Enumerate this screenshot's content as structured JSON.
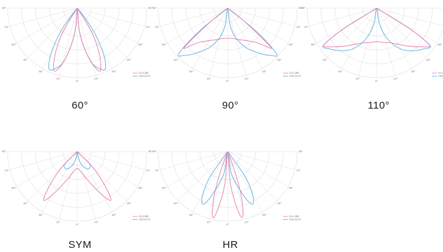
{
  "colors": {
    "c0": "#e67aa8",
    "c90": "#5aaee0",
    "grid": "#dedede",
    "tick": "#777777"
  },
  "tick_labels": [
    "90°",
    "75°",
    "60°",
    "45°",
    "30°",
    "15°",
    "0°",
    "15°",
    "30°",
    "45°",
    "60°",
    "75°",
    "90°"
  ],
  "legend": [
    "C0-C180",
    "C90-C270"
  ],
  "panels": [
    {
      "caption": "60°",
      "c0": {
        "pts": [
          [
            0,
            0
          ],
          [
            5,
            0.32
          ],
          [
            10,
            0.6
          ],
          [
            15,
            0.86
          ],
          [
            20,
            1.0
          ],
          [
            25,
            0.8
          ],
          [
            30,
            0.5
          ],
          [
            33,
            0.25
          ],
          [
            36,
            0
          ]
        ]
      },
      "c90": {
        "pts": [
          [
            0,
            0
          ],
          [
            5,
            0.32
          ],
          [
            10,
            0.6
          ],
          [
            15,
            0.85
          ],
          [
            20,
            0.96
          ],
          [
            25,
            1.0
          ],
          [
            30,
            0.78
          ],
          [
            35,
            0.45
          ],
          [
            38,
            0.2
          ],
          [
            40,
            0
          ]
        ]
      }
    },
    {
      "caption": "90°",
      "c0": {
        "pts": [
          [
            0,
            0.45
          ],
          [
            10,
            0.46
          ],
          [
            20,
            0.5
          ],
          [
            30,
            0.56
          ],
          [
            40,
            0.67
          ],
          [
            45,
            0.8
          ],
          [
            48,
            0.86
          ],
          [
            52,
            0.3
          ],
          [
            55,
            0
          ]
        ]
      },
      "c90": {
        "pts": [
          [
            0,
            0
          ],
          [
            8,
            0.25
          ],
          [
            15,
            0.45
          ],
          [
            25,
            0.65
          ],
          [
            35,
            0.82
          ],
          [
            42,
            0.95
          ],
          [
            47,
            1.0
          ],
          [
            51,
            0.55
          ],
          [
            55,
            0
          ]
        ]
      }
    },
    {
      "caption": "110°",
      "c0": {
        "pts": [
          [
            0,
            0.5
          ],
          [
            10,
            0.52
          ],
          [
            20,
            0.55
          ],
          [
            30,
            0.62
          ],
          [
            40,
            0.74
          ],
          [
            50,
            0.9
          ],
          [
            55,
            0.96
          ],
          [
            58,
            0.6
          ],
          [
            62,
            0
          ]
        ]
      },
      "c90": {
        "pts": [
          [
            0,
            0
          ],
          [
            10,
            0.25
          ],
          [
            20,
            0.5
          ],
          [
            30,
            0.7
          ],
          [
            40,
            0.83
          ],
          [
            50,
            0.94
          ],
          [
            55,
            0.97
          ],
          [
            58,
            0.6
          ],
          [
            62,
            0
          ]
        ]
      }
    },
    {
      "caption": "SYM",
      "c0": {
        "pts": [
          [
            0,
            0.25
          ],
          [
            10,
            0.3
          ],
          [
            20,
            0.45
          ],
          [
            30,
            0.75
          ],
          [
            35,
            0.88
          ],
          [
            40,
            0.6
          ],
          [
            45,
            0.3
          ],
          [
            50,
            0
          ]
        ]
      },
      "c90": {
        "pts": [
          [
            0,
            0
          ],
          [
            10,
            0.1
          ],
          [
            20,
            0.22
          ],
          [
            30,
            0.3
          ],
          [
            40,
            0.3
          ],
          [
            45,
            0.25
          ],
          [
            50,
            0
          ]
        ]
      }
    },
    {
      "caption": "HR",
      "c0": {
        "pts": [
          [
            0,
            0
          ],
          [
            5,
            0.5
          ],
          [
            10,
            0.9
          ],
          [
            13,
            1.0
          ],
          [
            17,
            0.7
          ],
          [
            20,
            0.3
          ],
          [
            22,
            0
          ]
        ]
      },
      "c90": {
        "pts": [
          [
            0,
            0
          ],
          [
            10,
            0.35
          ],
          [
            20,
            0.7
          ],
          [
            25,
            0.87
          ],
          [
            30,
            0.75
          ],
          [
            35,
            0.45
          ],
          [
            40,
            0
          ]
        ]
      }
    }
  ]
}
